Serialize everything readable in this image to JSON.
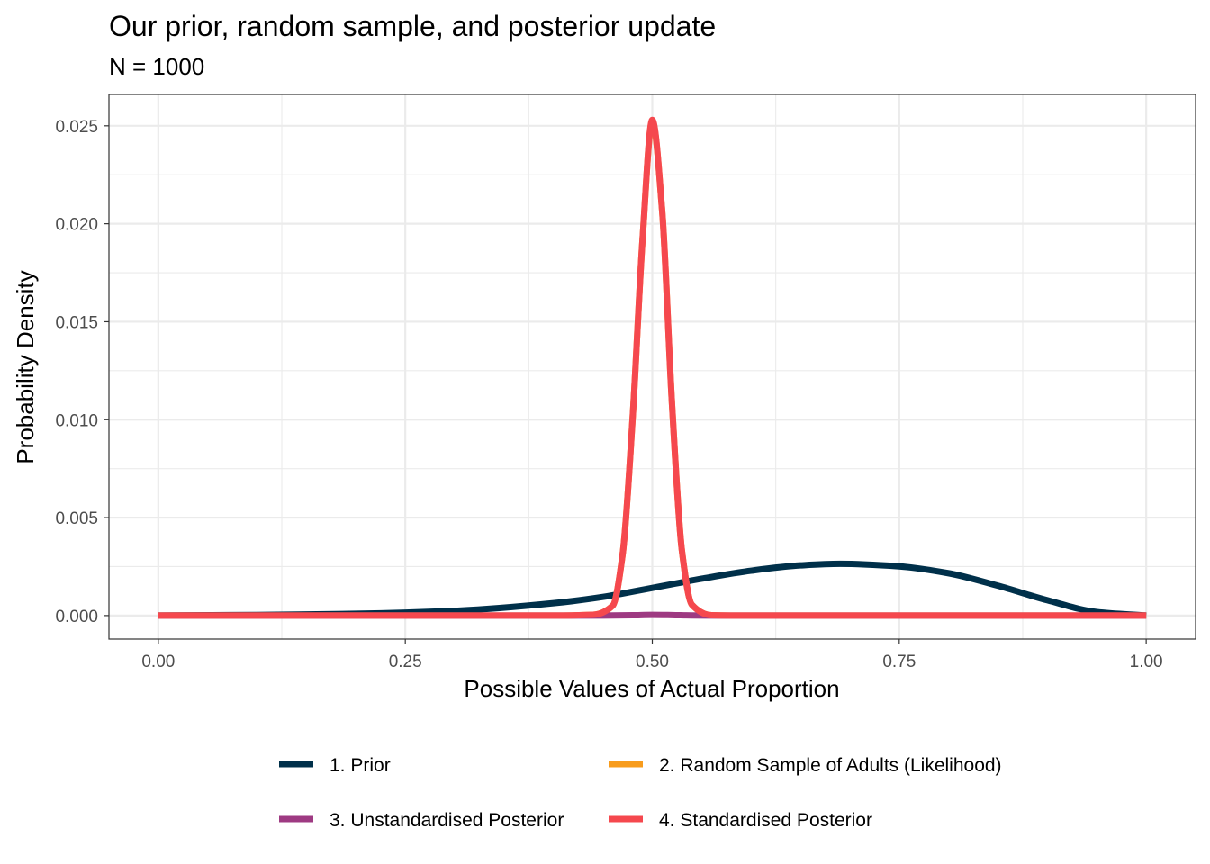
{
  "chart_data": {
    "type": "line",
    "title": "Our prior, random sample, and posterior update",
    "subtitle": "N = 1000",
    "xlabel": "Possible Values of Actual Proportion",
    "ylabel": "Probability Density",
    "xlim": [
      -0.05,
      1.05
    ],
    "ylim": [
      -0.0012,
      0.0266
    ],
    "x_ticks": [
      0.0,
      0.25,
      0.5,
      0.75,
      1.0
    ],
    "x_tick_labels": [
      "0.00",
      "0.25",
      "0.50",
      "0.75",
      "1.00"
    ],
    "y_ticks": [
      0.0,
      0.005,
      0.01,
      0.015,
      0.02,
      0.025
    ],
    "y_tick_labels": [
      "0.000",
      "0.005",
      "0.010",
      "0.015",
      "0.020",
      "0.025"
    ],
    "grid": true,
    "legend_position": "bottom",
    "series": [
      {
        "name": "1. Prior",
        "color": "#00304a",
        "points": [
          [
            0.0,
            0.0
          ],
          [
            0.1,
            3e-05
          ],
          [
            0.2,
            9e-05
          ],
          [
            0.3,
            0.00024
          ],
          [
            0.4,
            0.00063
          ],
          [
            0.45,
            0.00095
          ],
          [
            0.5,
            0.00141
          ],
          [
            0.55,
            0.00188
          ],
          [
            0.6,
            0.00229
          ],
          [
            0.65,
            0.00256
          ],
          [
            0.69,
            0.00264
          ],
          [
            0.75,
            0.00251
          ],
          [
            0.8,
            0.00216
          ],
          [
            0.85,
            0.00152
          ],
          [
            0.9,
            0.00078
          ],
          [
            0.95,
            0.00018
          ],
          [
            1.0,
            0.0
          ]
        ]
      },
      {
        "name": "2. Random Sample of Adults (Likelihood)",
        "color": "#f89c1c",
        "points": [
          [
            0.0,
            0.0
          ],
          [
            0.4,
            0.0
          ],
          [
            0.44,
            4e-05
          ],
          [
            0.46,
            0.00051
          ],
          [
            0.47,
            0.00313
          ],
          [
            0.48,
            0.00999
          ],
          [
            0.49,
            0.01909
          ],
          [
            0.5,
            0.02523
          ],
          [
            0.51,
            0.02066
          ],
          [
            0.52,
            0.01077
          ],
          [
            0.53,
            0.00331
          ],
          [
            0.54,
            0.00056
          ],
          [
            0.56,
            2e-05
          ],
          [
            0.6,
            0.0
          ],
          [
            1.0,
            0.0
          ]
        ]
      },
      {
        "name": "3. Unstandardised Posterior",
        "color": "#9e3a82",
        "points": [
          [
            0.0,
            0.0
          ],
          [
            0.44,
            0.0
          ],
          [
            0.46,
            5e-06
          ],
          [
            0.48,
            1.5e-05
          ],
          [
            0.5,
            3.6e-05
          ],
          [
            0.52,
            2.5e-05
          ],
          [
            0.54,
            7e-06
          ],
          [
            0.57,
            0.0
          ],
          [
            1.0,
            0.0
          ]
        ]
      },
      {
        "name": "4. Standardised Posterior",
        "color": "#f5484e",
        "points": [
          [
            0.0,
            0.0
          ],
          [
            0.4,
            0.0
          ],
          [
            0.44,
            4e-05
          ],
          [
            0.46,
            0.00051
          ],
          [
            0.47,
            0.00313
          ],
          [
            0.48,
            0.00999
          ],
          [
            0.49,
            0.01909
          ],
          [
            0.5,
            0.0253
          ],
          [
            0.51,
            0.02066
          ],
          [
            0.52,
            0.01077
          ],
          [
            0.53,
            0.00331
          ],
          [
            0.54,
            0.00056
          ],
          [
            0.56,
            2e-05
          ],
          [
            0.6,
            0.0
          ],
          [
            1.0,
            0.0
          ]
        ]
      }
    ]
  }
}
